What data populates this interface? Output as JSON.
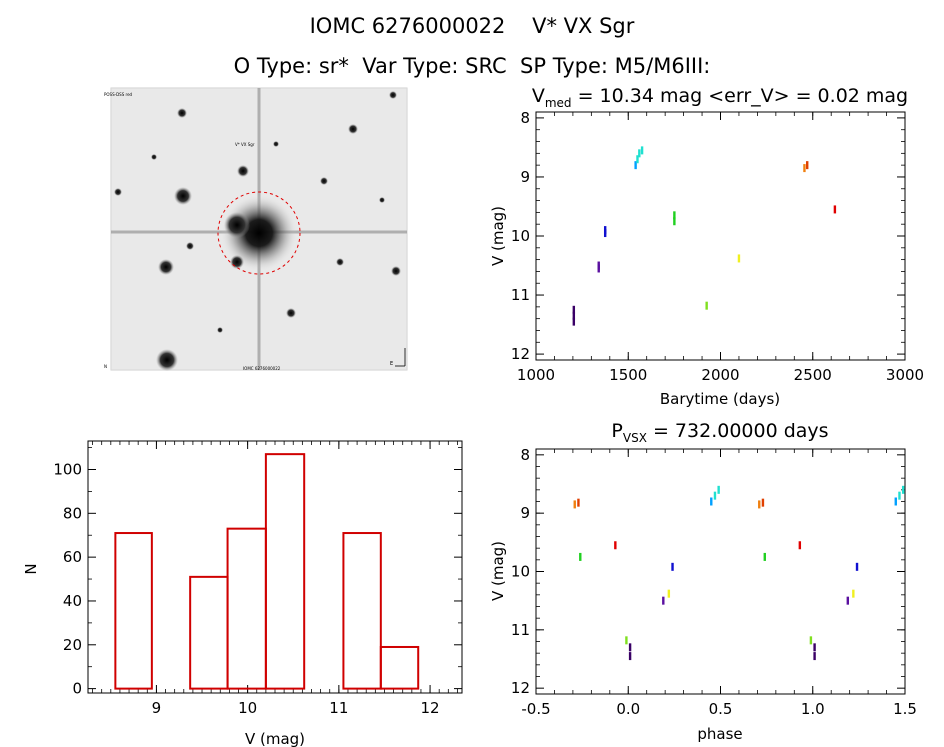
{
  "header": {
    "line1": "IOMC 6276000022    V* VX Sgr",
    "line2": "O Type: sr*  Var Type: SRC  SP Type: M5/M6III:"
  },
  "image_panel": {
    "tl_label": "POSS-DSS red",
    "mid_label": "V* VX Sgr",
    "bl_label": "N",
    "bc_label": "IOMC 6276000022",
    "br_label": "E"
  },
  "lightcurve": {
    "title_main": "V",
    "title_sub": "med",
    "title_rest": " = 10.34 mag <err_V> = 0.02 mag",
    "xlabel": "Barytime (days)",
    "ylabel": "V (mag)",
    "xlim": [
      1000,
      3000
    ],
    "ylim": [
      12.1,
      7.9
    ],
    "xticks": [
      1000,
      1500,
      2000,
      2500,
      3000
    ],
    "yticks": [
      8,
      9,
      10,
      11,
      12
    ],
    "points": [
      {
        "x": 1205,
        "y": 11.25,
        "color": "#3a0066"
      },
      {
        "x": 1205,
        "y": 11.35,
        "color": "#3a0066"
      },
      {
        "x": 1205,
        "y": 11.45,
        "color": "#3a0066"
      },
      {
        "x": 1340,
        "y": 10.5,
        "color": "#5a10a0"
      },
      {
        "x": 1340,
        "y": 10.55,
        "color": "#5a10a0"
      },
      {
        "x": 1375,
        "y": 9.9,
        "color": "#1010d0"
      },
      {
        "x": 1375,
        "y": 9.95,
        "color": "#1010d0"
      },
      {
        "x": 1540,
        "y": 8.8,
        "color": "#00a0ff"
      },
      {
        "x": 1550,
        "y": 8.7,
        "color": "#20e0d0"
      },
      {
        "x": 1560,
        "y": 8.6,
        "color": "#20e0d0"
      },
      {
        "x": 1575,
        "y": 8.55,
        "color": "#20e0d0"
      },
      {
        "x": 1750,
        "y": 9.65,
        "color": "#20d020"
      },
      {
        "x": 1750,
        "y": 9.75,
        "color": "#20d020"
      },
      {
        "x": 1925,
        "y": 11.18,
        "color": "#80e020"
      },
      {
        "x": 2100,
        "y": 10.38,
        "color": "#f0f020"
      },
      {
        "x": 2455,
        "y": 8.85,
        "color": "#f08010"
      },
      {
        "x": 2470,
        "y": 8.8,
        "color": "#e04000"
      },
      {
        "x": 2620,
        "y": 9.55,
        "color": "#e00000"
      }
    ]
  },
  "histogram": {
    "xlabel": "V (mag)",
    "ylabel": "N",
    "xlim": [
      8.25,
      12.35
    ],
    "ylim": [
      -2,
      113
    ],
    "xticks": [
      9,
      10,
      11,
      12
    ],
    "yticks": [
      0,
      20,
      40,
      60,
      80,
      100
    ],
    "bins": [
      {
        "x0": 8.55,
        "x1": 8.95,
        "n": 71
      },
      {
        "x0": 9.37,
        "x1": 9.78,
        "n": 51
      },
      {
        "x0": 9.78,
        "x1": 10.2,
        "n": 73
      },
      {
        "x0": 10.2,
        "x1": 10.62,
        "n": 107
      },
      {
        "x0": 11.05,
        "x1": 11.46,
        "n": 71
      },
      {
        "x0": 11.46,
        "x1": 11.87,
        "n": 19
      }
    ]
  },
  "phase": {
    "title_main": "P",
    "title_sub": "VSX",
    "title_rest": " = 732.00000 days",
    "xlabel": "phase",
    "ylabel": "V (mag)",
    "xlim": [
      -0.5,
      1.5
    ],
    "ylim": [
      12.1,
      7.9
    ],
    "xticks": [
      -0.5,
      0.0,
      0.5,
      1.0,
      1.5
    ],
    "xticklabels": [
      "-0.5",
      "0.0",
      "0.5",
      "1.0",
      "1.5"
    ],
    "yticks": [
      8,
      9,
      10,
      11,
      12
    ],
    "points": [
      {
        "x": -0.29,
        "y": 8.85,
        "color": "#f08010"
      },
      {
        "x": -0.27,
        "y": 8.82,
        "color": "#e04000"
      },
      {
        "x": -0.26,
        "y": 9.75,
        "color": "#20d020"
      },
      {
        "x": -0.07,
        "y": 9.55,
        "color": "#e00000"
      },
      {
        "x": -0.01,
        "y": 11.18,
        "color": "#80e020"
      },
      {
        "x": 0.01,
        "y": 11.3,
        "color": "#3a0066"
      },
      {
        "x": 0.01,
        "y": 11.45,
        "color": "#3a0066"
      },
      {
        "x": 0.19,
        "y": 10.5,
        "color": "#5a10a0"
      },
      {
        "x": 0.22,
        "y": 10.38,
        "color": "#f0f020"
      },
      {
        "x": 0.24,
        "y": 9.92,
        "color": "#1010d0"
      },
      {
        "x": 0.45,
        "y": 8.8,
        "color": "#00a0ff"
      },
      {
        "x": 0.47,
        "y": 8.7,
        "color": "#20e0d0"
      },
      {
        "x": 0.49,
        "y": 8.6,
        "color": "#20e0d0"
      },
      {
        "x": 0.71,
        "y": 8.85,
        "color": "#f08010"
      },
      {
        "x": 0.73,
        "y": 8.82,
        "color": "#e04000"
      },
      {
        "x": 0.74,
        "y": 9.75,
        "color": "#20d020"
      },
      {
        "x": 0.93,
        "y": 9.55,
        "color": "#e00000"
      },
      {
        "x": 0.99,
        "y": 11.18,
        "color": "#80e020"
      },
      {
        "x": 1.01,
        "y": 11.3,
        "color": "#3a0066"
      },
      {
        "x": 1.01,
        "y": 11.45,
        "color": "#3a0066"
      },
      {
        "x": 1.19,
        "y": 10.5,
        "color": "#5a10a0"
      },
      {
        "x": 1.22,
        "y": 10.38,
        "color": "#f0f020"
      },
      {
        "x": 1.24,
        "y": 9.92,
        "color": "#1010d0"
      },
      {
        "x": 1.45,
        "y": 8.8,
        "color": "#00a0ff"
      },
      {
        "x": 1.47,
        "y": 8.7,
        "color": "#20e0d0"
      },
      {
        "x": 1.49,
        "y": 8.6,
        "color": "#20e0d0"
      }
    ]
  },
  "chart_data": [
    {
      "type": "scatter",
      "title": "Vmed = 10.34 mag <err_V> = 0.02 mag",
      "xlabel": "Barytime (days)",
      "ylabel": "V (mag)",
      "xlim": [
        1000,
        3000
      ],
      "ylim": [
        12,
        8
      ],
      "y_inverted": true,
      "x": [
        1205,
        1340,
        1375,
        1550,
        1750,
        1925,
        2100,
        2460,
        2620
      ],
      "y": [
        11.35,
        10.52,
        9.93,
        8.65,
        9.7,
        11.18,
        10.38,
        8.83,
        9.55
      ]
    },
    {
      "type": "bar",
      "xlabel": "V (mag)",
      "ylabel": "N",
      "categories": [
        "8.55-8.95",
        "9.37-9.78",
        "9.78-10.2",
        "10.2-10.62",
        "11.05-11.46",
        "11.46-11.87"
      ],
      "values": [
        71,
        51,
        73,
        107,
        71,
        19
      ],
      "ylim": [
        0,
        110
      ]
    },
    {
      "type": "scatter",
      "title": "PVSX = 732.00000 days",
      "xlabel": "phase",
      "ylabel": "V (mag)",
      "xlim": [
        -0.5,
        1.5
      ],
      "ylim": [
        12,
        8
      ],
      "y_inverted": true,
      "x": [
        -0.28,
        -0.26,
        -0.07,
        0.01,
        0.19,
        0.22,
        0.24,
        0.47,
        0.72,
        0.74,
        0.93,
        1.01,
        1.19,
        1.22,
        1.24,
        1.47
      ],
      "y": [
        8.83,
        9.75,
        9.55,
        11.35,
        10.5,
        10.38,
        9.92,
        8.65,
        8.83,
        9.75,
        9.55,
        11.35,
        10.5,
        10.38,
        9.92,
        8.65
      ]
    }
  ]
}
